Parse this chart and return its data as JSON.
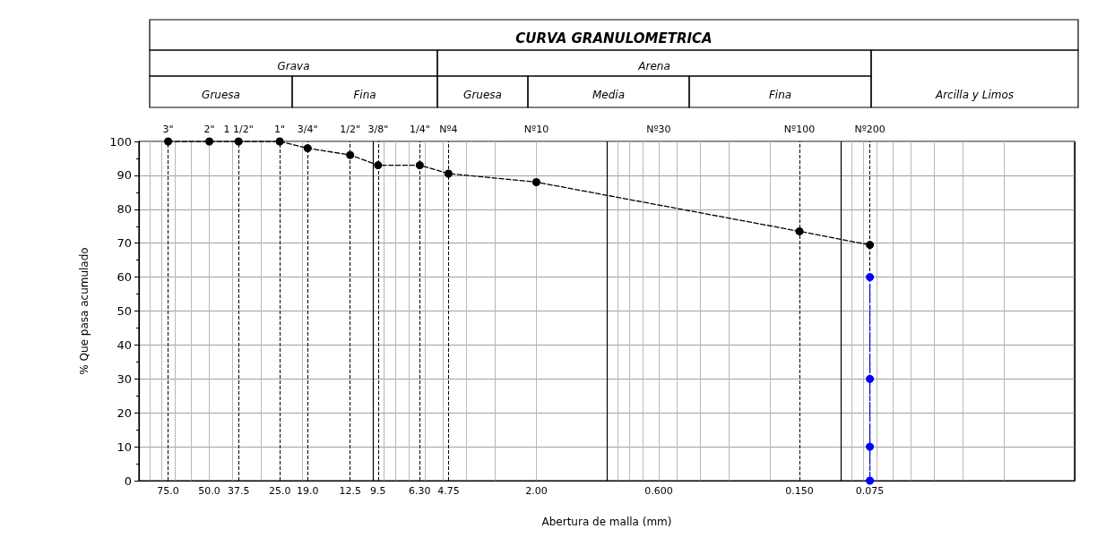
{
  "chart_data": {
    "type": "line",
    "title": "CURVA GRANULOMETRICA",
    "xlabel": "Abertura de malla (mm)",
    "ylabel": "% Que pasa acumulado",
    "annotations": [
      "Grava",
      "Arena",
      "Gruesa",
      "Fina",
      "Gruesa",
      "Media",
      "Fina",
      "Arcilla y Limos",
      "3\"",
      "2\"",
      "1 1/2\"",
      "1\"",
      "3/4\"",
      "1/2\"",
      "3/8\"",
      "1/4\"",
      "Nº4",
      "Nº10",
      "Nº30",
      "Nº100",
      "Nº200"
    ],
    "series": [
      {
        "color": "#000000",
        "x": [
          75,
          50,
          37.5,
          25,
          19,
          12.5,
          9.5,
          6.3,
          4.75,
          2,
          0.15,
          0.075
        ],
        "values": [
          100,
          100,
          100,
          100,
          98,
          96,
          93,
          93,
          90.5,
          88,
          73.5,
          69.5
        ]
      },
      {
        "color": "#0000ff",
        "x": [
          0.075,
          0.075,
          0.075,
          0.075
        ],
        "values": [
          60,
          30,
          10,
          0
        ]
      }
    ],
    "log": "x",
    "xlim": [
      100,
      0.01
    ],
    "xticks": [
      {
        "value": 75,
        "label": "75.0"
      },
      {
        "value": 50,
        "label": "50.0"
      },
      {
        "value": 37.5,
        "label": "37.5"
      },
      {
        "value": 25,
        "label": "25.0"
      },
      {
        "value": 19,
        "label": "19.0"
      },
      {
        "value": 12.5,
        "label": "12.5"
      },
      9.5,
      {
        "value": 6.3,
        "label": "6.30"
      },
      4.75,
      {
        "value": 2,
        "label": "2.00"
      },
      {
        "value": 0.6,
        "label": "0.600"
      },
      {
        "value": 0.15,
        "label": "0.150"
      },
      0.075
    ],
    "ylim": [
      0,
      100
    ],
    "yticks": [
      0,
      10,
      20,
      30,
      40,
      50,
      60,
      70,
      80,
      90,
      100
    ],
    "grid": true,
    "marker": "circle",
    "line_style": "dashed"
  }
}
